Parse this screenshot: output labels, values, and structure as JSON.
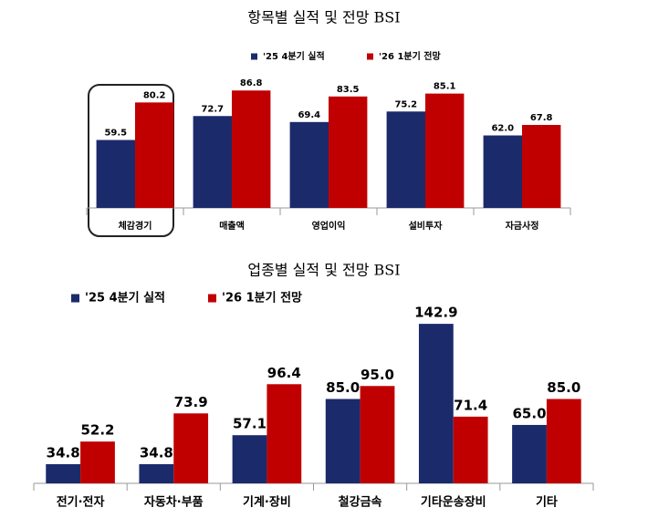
{
  "chart_data": [
    {
      "type": "bar",
      "title": "항목별 실적 및 전망 BSI",
      "categories": [
        "체감경기",
        "매출액",
        "영업이익",
        "설비투자",
        "자금사정"
      ],
      "series": [
        {
          "name": "'25 4분기 실적",
          "color": "#1b2a6b",
          "values": [
            59.5,
            72.7,
            69.4,
            75.2,
            62.0
          ],
          "value_labels": [
            "59.5",
            "72.7",
            "69.4",
            "75.2",
            "62.0"
          ]
        },
        {
          "name": "'26 1분기 전망",
          "color": "#c00000",
          "values": [
            80.2,
            86.8,
            83.5,
            85.1,
            67.8
          ],
          "value_labels": [
            "80.2",
            "86.8",
            "83.5",
            "85.1",
            "67.8"
          ]
        }
      ],
      "ylim": [
        22,
        100
      ]
    },
    {
      "type": "bar",
      "title": "업종별 실적 및 전망 BSI",
      "categories": [
        "전기·전자",
        "자동차·부품",
        "기계·장비",
        "철강금속",
        "기타운송장비",
        "기타"
      ],
      "series": [
        {
          "name": "'25 4분기 실적",
          "color": "#1b2a6b",
          "values": [
            34.8,
            34.8,
            57.1,
            85.0,
            142.9,
            65.0
          ],
          "value_labels": [
            "34.8",
            "34.8",
            "57.1",
            "85.0",
            "142.9",
            "65.0"
          ]
        },
        {
          "name": "'26 1분기 전망",
          "color": "#c00000",
          "values": [
            52.2,
            73.9,
            96.4,
            95.0,
            71.4,
            85.0
          ],
          "value_labels": [
            "52.2",
            "73.9",
            "96.4",
            "95.0",
            "71.4",
            "85.0"
          ]
        }
      ],
      "ylim": [
        20,
        150
      ]
    }
  ]
}
